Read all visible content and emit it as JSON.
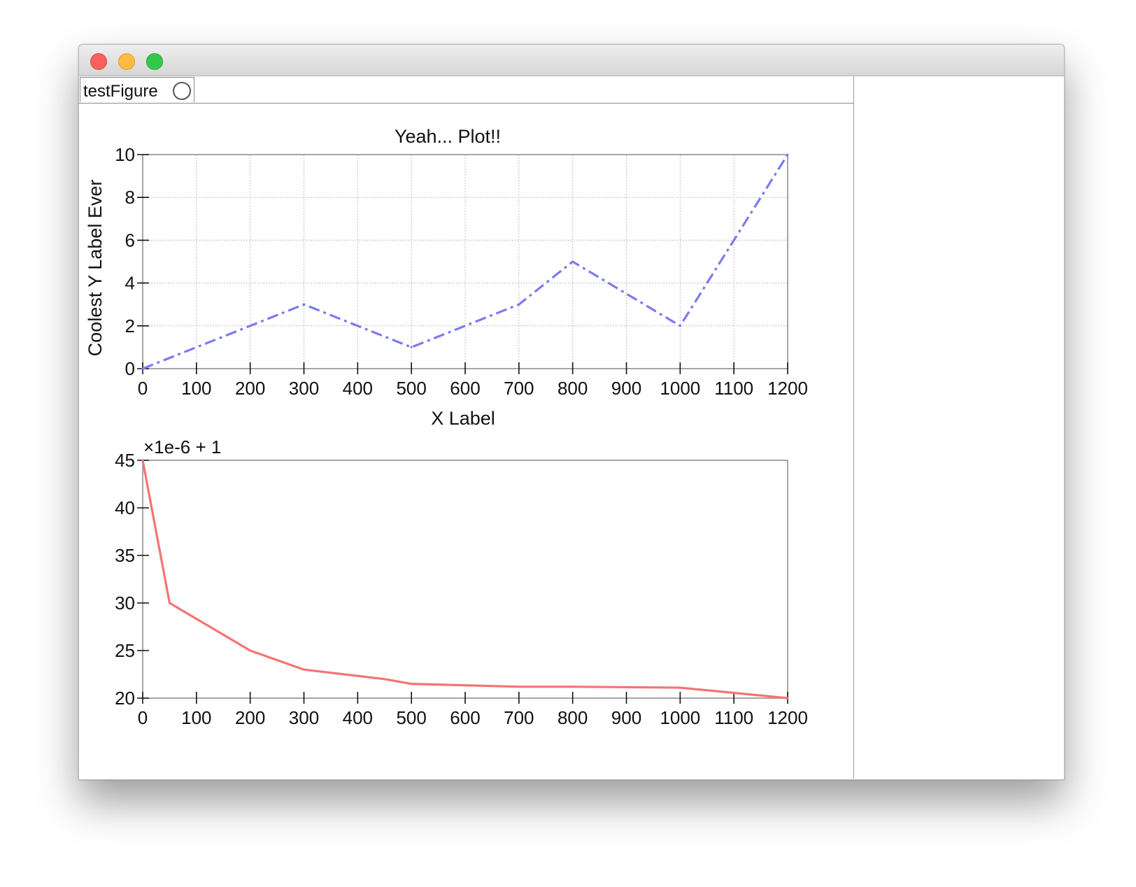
{
  "window": {
    "title": ""
  },
  "tabs": [
    {
      "label": "testFigure"
    }
  ],
  "colors": {
    "series_blue": "#7b7bf0",
    "series_red": "#f57373",
    "grid": "#bdbdbd",
    "axis": "#888888"
  },
  "chart_data": [
    {
      "type": "line",
      "title": "Yeah... Plot!!",
      "xlabel": "X Label",
      "ylabel": "Coolest Y Label Ever",
      "xlim": [
        0,
        1200
      ],
      "ylim": [
        0,
        10
      ],
      "xticks": [
        "0",
        "100",
        "200",
        "300",
        "400",
        "500",
        "600",
        "700",
        "800",
        "900",
        "1000",
        "1100",
        "1200"
      ],
      "yticks": [
        "0",
        "2",
        "4",
        "6",
        "8",
        "10"
      ],
      "grid": true,
      "series": [
        {
          "line_style": "dashed",
          "color": "#7b7bf0",
          "x": [
            0,
            300,
            500,
            700,
            800,
            1000,
            1200
          ],
          "y": [
            0,
            3,
            1,
            3,
            5,
            2,
            10
          ]
        }
      ]
    },
    {
      "type": "line",
      "title": "",
      "xlabel": "",
      "ylabel": "",
      "offset_label": "×1e-6 + 1",
      "xlim": [
        0,
        1200
      ],
      "ylim": [
        20,
        45
      ],
      "xticks": [
        "0",
        "100",
        "200",
        "300",
        "400",
        "500",
        "600",
        "700",
        "800",
        "900",
        "1000",
        "1100",
        "1200"
      ],
      "yticks": [
        "20",
        "25",
        "30",
        "35",
        "40",
        "45"
      ],
      "grid": false,
      "series": [
        {
          "line_style": "solid",
          "color": "#f57373",
          "x": [
            0,
            50,
            200,
            300,
            450,
            500,
            700,
            800,
            1000,
            1200
          ],
          "y": [
            45,
            30,
            25,
            23,
            22,
            21.5,
            21.2,
            21.2,
            21.1,
            20
          ]
        }
      ]
    }
  ]
}
